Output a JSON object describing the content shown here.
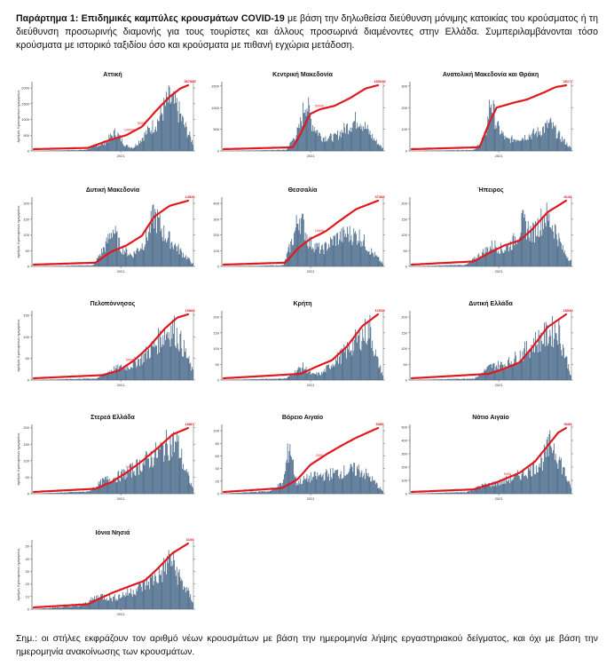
{
  "header": {
    "title": "Παράρτημα 1:  Επιδημικές καμπύλες κρουσμάτων COVID-19",
    "text": " με βάση την δηλωθείσα διεύθυνση μόνιμης κατοικίας του κρούσματος ή τη διεύθυνση προσωρινής διαμονής για τους τουρίστες και άλλους προσωρινά διαμένοντες στην Ελλάδα. Συμπεριλαμβάνονται τόσο κρούσματα με ιστορικό ταξιδίου όσο και κρούσματα με πιθανή εγχώρια μετάδοση."
  },
  "note": "Σημ.:  οι στήλες εκφράζουν τον αριθμό νέων κρουσμάτων με βάση την ημερομηνία λήψης εργαστηριακού δείγματος, και όχι με βάση την ημερομηνία ανακοίνωσης των κρουσμάτων.",
  "colors": {
    "bars": "#4a6a8a",
    "curve": "#e0191f",
    "axis": "#333333"
  },
  "chart_data": [
    {
      "type": "bar",
      "title": "Αττική",
      "ylabel": "Αριθμός Κρουσμάτων ημερησίως",
      "yticks": [
        "0",
        "500",
        "1000",
        "1500",
        "2000"
      ],
      "ymax": 2200,
      "xtick": "2021",
      "cum_label": "387885",
      "mid_labels": [
        "100000",
        "50000"
      ],
      "profile": [
        [
          0.0,
          0.0
        ],
        [
          0.33,
          0.02
        ],
        [
          0.45,
          0.15
        ],
        [
          0.52,
          0.35
        ],
        [
          0.58,
          0.1
        ],
        [
          0.63,
          0.06
        ],
        [
          0.7,
          0.3
        ],
        [
          0.78,
          0.55
        ],
        [
          0.85,
          0.95
        ],
        [
          0.9,
          0.8
        ],
        [
          0.95,
          0.45
        ],
        [
          1.0,
          0.15
        ]
      ],
      "cum": [
        [
          0,
          0.0
        ],
        [
          0.35,
          0.02
        ],
        [
          0.5,
          0.15
        ],
        [
          0.6,
          0.22
        ],
        [
          0.7,
          0.35
        ],
        [
          0.8,
          0.62
        ],
        [
          0.88,
          0.82
        ],
        [
          0.95,
          0.95
        ],
        [
          1.0,
          1.0
        ]
      ]
    },
    {
      "type": "bar",
      "title": "Κεντρική Μακεδονία",
      "ylabel": "",
      "yticks": [
        "0",
        "500",
        "1000",
        "1500"
      ],
      "ymax": 1600,
      "xtick": "2021",
      "cum_label": "180649",
      "mid_labels": [
        "50000"
      ],
      "profile": [
        [
          0.0,
          0.0
        ],
        [
          0.4,
          0.02
        ],
        [
          0.48,
          0.4
        ],
        [
          0.52,
          0.95
        ],
        [
          0.56,
          0.5
        ],
        [
          0.62,
          0.25
        ],
        [
          0.7,
          0.25
        ],
        [
          0.78,
          0.45
        ],
        [
          0.85,
          0.6
        ],
        [
          0.9,
          0.4
        ],
        [
          0.95,
          0.2
        ],
        [
          1.0,
          0.05
        ]
      ],
      "cum": [
        [
          0,
          0.0
        ],
        [
          0.45,
          0.03
        ],
        [
          0.5,
          0.25
        ],
        [
          0.56,
          0.55
        ],
        [
          0.62,
          0.62
        ],
        [
          0.72,
          0.68
        ],
        [
          0.82,
          0.8
        ],
        [
          0.92,
          0.95
        ],
        [
          1.0,
          1.0
        ]
      ]
    },
    {
      "type": "bar",
      "title": "Ανατολική Μακεδονία και Θράκη",
      "ylabel": "",
      "yticks": [
        "0",
        "100",
        "200",
        "300"
      ],
      "ymax": 320,
      "xtick": "2021",
      "cum_label": "28177",
      "mid_labels": [],
      "profile": [
        [
          0.0,
          0.0
        ],
        [
          0.4,
          0.02
        ],
        [
          0.47,
          0.3
        ],
        [
          0.5,
          0.95
        ],
        [
          0.54,
          0.45
        ],
        [
          0.6,
          0.2
        ],
        [
          0.7,
          0.25
        ],
        [
          0.8,
          0.35
        ],
        [
          0.87,
          0.5
        ],
        [
          0.92,
          0.3
        ],
        [
          1.0,
          0.05
        ]
      ],
      "cum": [
        [
          0,
          0.0
        ],
        [
          0.44,
          0.03
        ],
        [
          0.5,
          0.4
        ],
        [
          0.55,
          0.65
        ],
        [
          0.65,
          0.72
        ],
        [
          0.75,
          0.78
        ],
        [
          0.85,
          0.88
        ],
        [
          0.93,
          0.97
        ],
        [
          1.0,
          1.0
        ]
      ]
    },
    {
      "type": "bar",
      "title": "Δυτική Μακεδονία",
      "ylabel": "Αριθμός Κρουσμάτων ημερησίως",
      "yticks": [
        "0",
        "50",
        "100",
        "150",
        "200"
      ],
      "ymax": 220,
      "xtick": "2021",
      "cum_label": "14526",
      "mid_labels": [],
      "profile": [
        [
          0.0,
          0.0
        ],
        [
          0.38,
          0.02
        ],
        [
          0.46,
          0.4
        ],
        [
          0.5,
          0.7
        ],
        [
          0.55,
          0.35
        ],
        [
          0.62,
          0.2
        ],
        [
          0.7,
          0.45
        ],
        [
          0.76,
          0.95
        ],
        [
          0.82,
          0.6
        ],
        [
          0.9,
          0.35
        ],
        [
          1.0,
          0.05
        ]
      ],
      "cum": [
        [
          0,
          0.0
        ],
        [
          0.4,
          0.03
        ],
        [
          0.5,
          0.2
        ],
        [
          0.6,
          0.3
        ],
        [
          0.7,
          0.45
        ],
        [
          0.78,
          0.75
        ],
        [
          0.88,
          0.92
        ],
        [
          1.0,
          1.0
        ]
      ]
    },
    {
      "type": "bar",
      "title": "Θεσσαλία",
      "ylabel": "",
      "yticks": [
        "0",
        "100",
        "200",
        "300",
        "400"
      ],
      "ymax": 440,
      "xtick": "2021",
      "cum_label": "37466",
      "mid_labels": [
        "10000"
      ],
      "profile": [
        [
          0.0,
          0.0
        ],
        [
          0.38,
          0.02
        ],
        [
          0.44,
          0.5
        ],
        [
          0.48,
          0.95
        ],
        [
          0.54,
          0.45
        ],
        [
          0.62,
          0.3
        ],
        [
          0.7,
          0.5
        ],
        [
          0.78,
          0.6
        ],
        [
          0.86,
          0.55
        ],
        [
          0.92,
          0.3
        ],
        [
          1.0,
          0.05
        ]
      ],
      "cum": [
        [
          0,
          0.0
        ],
        [
          0.4,
          0.03
        ],
        [
          0.48,
          0.25
        ],
        [
          0.56,
          0.4
        ],
        [
          0.66,
          0.52
        ],
        [
          0.76,
          0.7
        ],
        [
          0.86,
          0.87
        ],
        [
          1.0,
          1.0
        ]
      ]
    },
    {
      "type": "bar",
      "title": "Ήπειρος",
      "ylabel": "",
      "yticks": [
        "0",
        "50",
        "100",
        "150",
        "200"
      ],
      "ymax": 220,
      "xtick": "2021",
      "cum_label": "8138",
      "mid_labels": [],
      "profile": [
        [
          0.0,
          0.0
        ],
        [
          0.35,
          0.03
        ],
        [
          0.45,
          0.25
        ],
        [
          0.52,
          0.4
        ],
        [
          0.58,
          0.3
        ],
        [
          0.64,
          0.45
        ],
        [
          0.7,
          0.8
        ],
        [
          0.76,
          0.6
        ],
        [
          0.84,
          0.95
        ],
        [
          0.9,
          0.7
        ],
        [
          0.95,
          0.3
        ],
        [
          1.0,
          0.1
        ]
      ],
      "cum": [
        [
          0,
          0.0
        ],
        [
          0.4,
          0.05
        ],
        [
          0.5,
          0.18
        ],
        [
          0.6,
          0.3
        ],
        [
          0.7,
          0.38
        ],
        [
          0.78,
          0.55
        ],
        [
          0.88,
          0.82
        ],
        [
          1.0,
          1.0
        ]
      ]
    },
    {
      "type": "bar",
      "title": "Πελοπόννησος",
      "ylabel": "Αριθμός Κρουσμάτων ημερησίως",
      "yticks": [
        "0",
        "50",
        "100",
        "150"
      ],
      "ymax": 160,
      "xtick": "2021",
      "cum_label": "19883",
      "mid_labels": [
        "5000"
      ],
      "profile": [
        [
          0.0,
          0.0
        ],
        [
          0.4,
          0.03
        ],
        [
          0.5,
          0.2
        ],
        [
          0.6,
          0.25
        ],
        [
          0.68,
          0.4
        ],
        [
          0.75,
          0.6
        ],
        [
          0.82,
          0.85
        ],
        [
          0.88,
          0.95
        ],
        [
          0.94,
          0.6
        ],
        [
          1.0,
          0.15
        ]
      ],
      "cum": [
        [
          0,
          0.0
        ],
        [
          0.45,
          0.05
        ],
        [
          0.55,
          0.12
        ],
        [
          0.65,
          0.28
        ],
        [
          0.75,
          0.5
        ],
        [
          0.85,
          0.78
        ],
        [
          0.93,
          0.95
        ],
        [
          1.0,
          1.0
        ]
      ]
    },
    {
      "type": "bar",
      "title": "Κρήτη",
      "ylabel": "",
      "yticks": [
        "0",
        "50",
        "100",
        "150",
        "200"
      ],
      "ymax": 220,
      "xtick": "2021",
      "cum_label": "12535",
      "mid_labels": [],
      "profile": [
        [
          0.0,
          0.0
        ],
        [
          0.4,
          0.03
        ],
        [
          0.5,
          0.25
        ],
        [
          0.56,
          0.1
        ],
        [
          0.62,
          0.12
        ],
        [
          0.7,
          0.35
        ],
        [
          0.78,
          0.55
        ],
        [
          0.86,
          0.8
        ],
        [
          0.92,
          0.95
        ],
        [
          0.96,
          0.4
        ],
        [
          1.0,
          0.1
        ]
      ],
      "cum": [
        [
          0,
          0.0
        ],
        [
          0.5,
          0.07
        ],
        [
          0.6,
          0.18
        ],
        [
          0.7,
          0.28
        ],
        [
          0.8,
          0.5
        ],
        [
          0.9,
          0.82
        ],
        [
          1.0,
          1.0
        ]
      ]
    },
    {
      "type": "bar",
      "title": "Δυτική Ελλάδα",
      "ylabel": "",
      "yticks": [
        "0",
        "50",
        "100",
        "150",
        "200"
      ],
      "ymax": 220,
      "xtick": "2021",
      "cum_label": "18530",
      "mid_labels": [],
      "profile": [
        [
          0.0,
          0.0
        ],
        [
          0.4,
          0.03
        ],
        [
          0.5,
          0.25
        ],
        [
          0.6,
          0.3
        ],
        [
          0.7,
          0.5
        ],
        [
          0.78,
          0.7
        ],
        [
          0.86,
          0.85
        ],
        [
          0.92,
          0.95
        ],
        [
          0.96,
          0.5
        ],
        [
          1.0,
          0.1
        ]
      ],
      "cum": [
        [
          0,
          0.0
        ],
        [
          0.5,
          0.07
        ],
        [
          0.6,
          0.15
        ],
        [
          0.7,
          0.25
        ],
        [
          0.78,
          0.48
        ],
        [
          0.88,
          0.8
        ],
        [
          1.0,
          1.0
        ]
      ]
    },
    {
      "type": "bar",
      "title": "Στερεά Ελλάδα",
      "ylabel": "Αριθμός Κρουσμάτων ημερησίως",
      "yticks": [
        "0",
        "50",
        "100",
        "150",
        "200"
      ],
      "ymax": 210,
      "xtick": "2021",
      "cum_label": "18867",
      "mid_labels": [
        "5000"
      ],
      "profile": [
        [
          0.0,
          0.0
        ],
        [
          0.35,
          0.04
        ],
        [
          0.45,
          0.25
        ],
        [
          0.52,
          0.3
        ],
        [
          0.6,
          0.4
        ],
        [
          0.68,
          0.55
        ],
        [
          0.76,
          0.7
        ],
        [
          0.84,
          0.9
        ],
        [
          0.9,
          0.95
        ],
        [
          0.95,
          0.45
        ],
        [
          1.0,
          0.1
        ]
      ],
      "cum": [
        [
          0,
          0.0
        ],
        [
          0.4,
          0.05
        ],
        [
          0.5,
          0.15
        ],
        [
          0.6,
          0.3
        ],
        [
          0.7,
          0.48
        ],
        [
          0.8,
          0.68
        ],
        [
          0.9,
          0.9
        ],
        [
          1.0,
          1.0
        ]
      ]
    },
    {
      "type": "bar",
      "title": "Βόρειο Αιγαίο",
      "ylabel": "",
      "yticks": [
        "0",
        "20",
        "40",
        "60",
        "80",
        "100"
      ],
      "ymax": 110,
      "xtick": "2021",
      "cum_label": "5389",
      "mid_labels": [
        "2000"
      ],
      "profile": [
        [
          0.0,
          0.0
        ],
        [
          0.3,
          0.05
        ],
        [
          0.38,
          0.2
        ],
        [
          0.42,
          0.95
        ],
        [
          0.46,
          0.2
        ],
        [
          0.55,
          0.3
        ],
        [
          0.65,
          0.35
        ],
        [
          0.75,
          0.4
        ],
        [
          0.85,
          0.45
        ],
        [
          0.92,
          0.3
        ],
        [
          1.0,
          0.05
        ]
      ],
      "cum": [
        [
          0,
          0.0
        ],
        [
          0.38,
          0.06
        ],
        [
          0.48,
          0.2
        ],
        [
          0.56,
          0.42
        ],
        [
          0.66,
          0.58
        ],
        [
          0.76,
          0.72
        ],
        [
          0.86,
          0.85
        ],
        [
          1.0,
          1.0
        ]
      ]
    },
    {
      "type": "bar",
      "title": "Νότιο Αιγαίο",
      "ylabel": "",
      "yticks": [
        "0",
        "100",
        "200",
        "300",
        "400",
        "500"
      ],
      "ymax": 520,
      "xtick": "2021",
      "cum_label": "9689",
      "mid_labels": [
        "5000"
      ],
      "profile": [
        [
          0.0,
          0.0
        ],
        [
          0.35,
          0.03
        ],
        [
          0.45,
          0.15
        ],
        [
          0.55,
          0.2
        ],
        [
          0.65,
          0.3
        ],
        [
          0.75,
          0.45
        ],
        [
          0.82,
          0.6
        ],
        [
          0.88,
          0.95
        ],
        [
          0.94,
          0.55
        ],
        [
          1.0,
          0.1
        ]
      ],
      "cum": [
        [
          0,
          0.0
        ],
        [
          0.4,
          0.04
        ],
        [
          0.55,
          0.15
        ],
        [
          0.7,
          0.3
        ],
        [
          0.8,
          0.48
        ],
        [
          0.88,
          0.72
        ],
        [
          0.95,
          0.93
        ],
        [
          1.0,
          1.0
        ]
      ]
    },
    {
      "type": "bar",
      "title": "Ιόνια Νησιά",
      "ylabel": "Αριθμός Κρουσμάτων ημερησίως",
      "yticks": [
        "0",
        "10",
        "20",
        "30",
        "40",
        "50"
      ],
      "ymax": 55,
      "xtick": "2021",
      "cum_label": "3165",
      "mid_labels": [],
      "profile": [
        [
          0.0,
          0.0
        ],
        [
          0.3,
          0.06
        ],
        [
          0.42,
          0.25
        ],
        [
          0.5,
          0.2
        ],
        [
          0.6,
          0.3
        ],
        [
          0.7,
          0.45
        ],
        [
          0.8,
          0.65
        ],
        [
          0.86,
          0.95
        ],
        [
          0.92,
          0.55
        ],
        [
          1.0,
          0.15
        ]
      ],
      "cum": [
        [
          0,
          0.0
        ],
        [
          0.35,
          0.05
        ],
        [
          0.5,
          0.22
        ],
        [
          0.62,
          0.33
        ],
        [
          0.72,
          0.42
        ],
        [
          0.8,
          0.6
        ],
        [
          0.9,
          0.85
        ],
        [
          1.0,
          1.0
        ]
      ]
    }
  ]
}
